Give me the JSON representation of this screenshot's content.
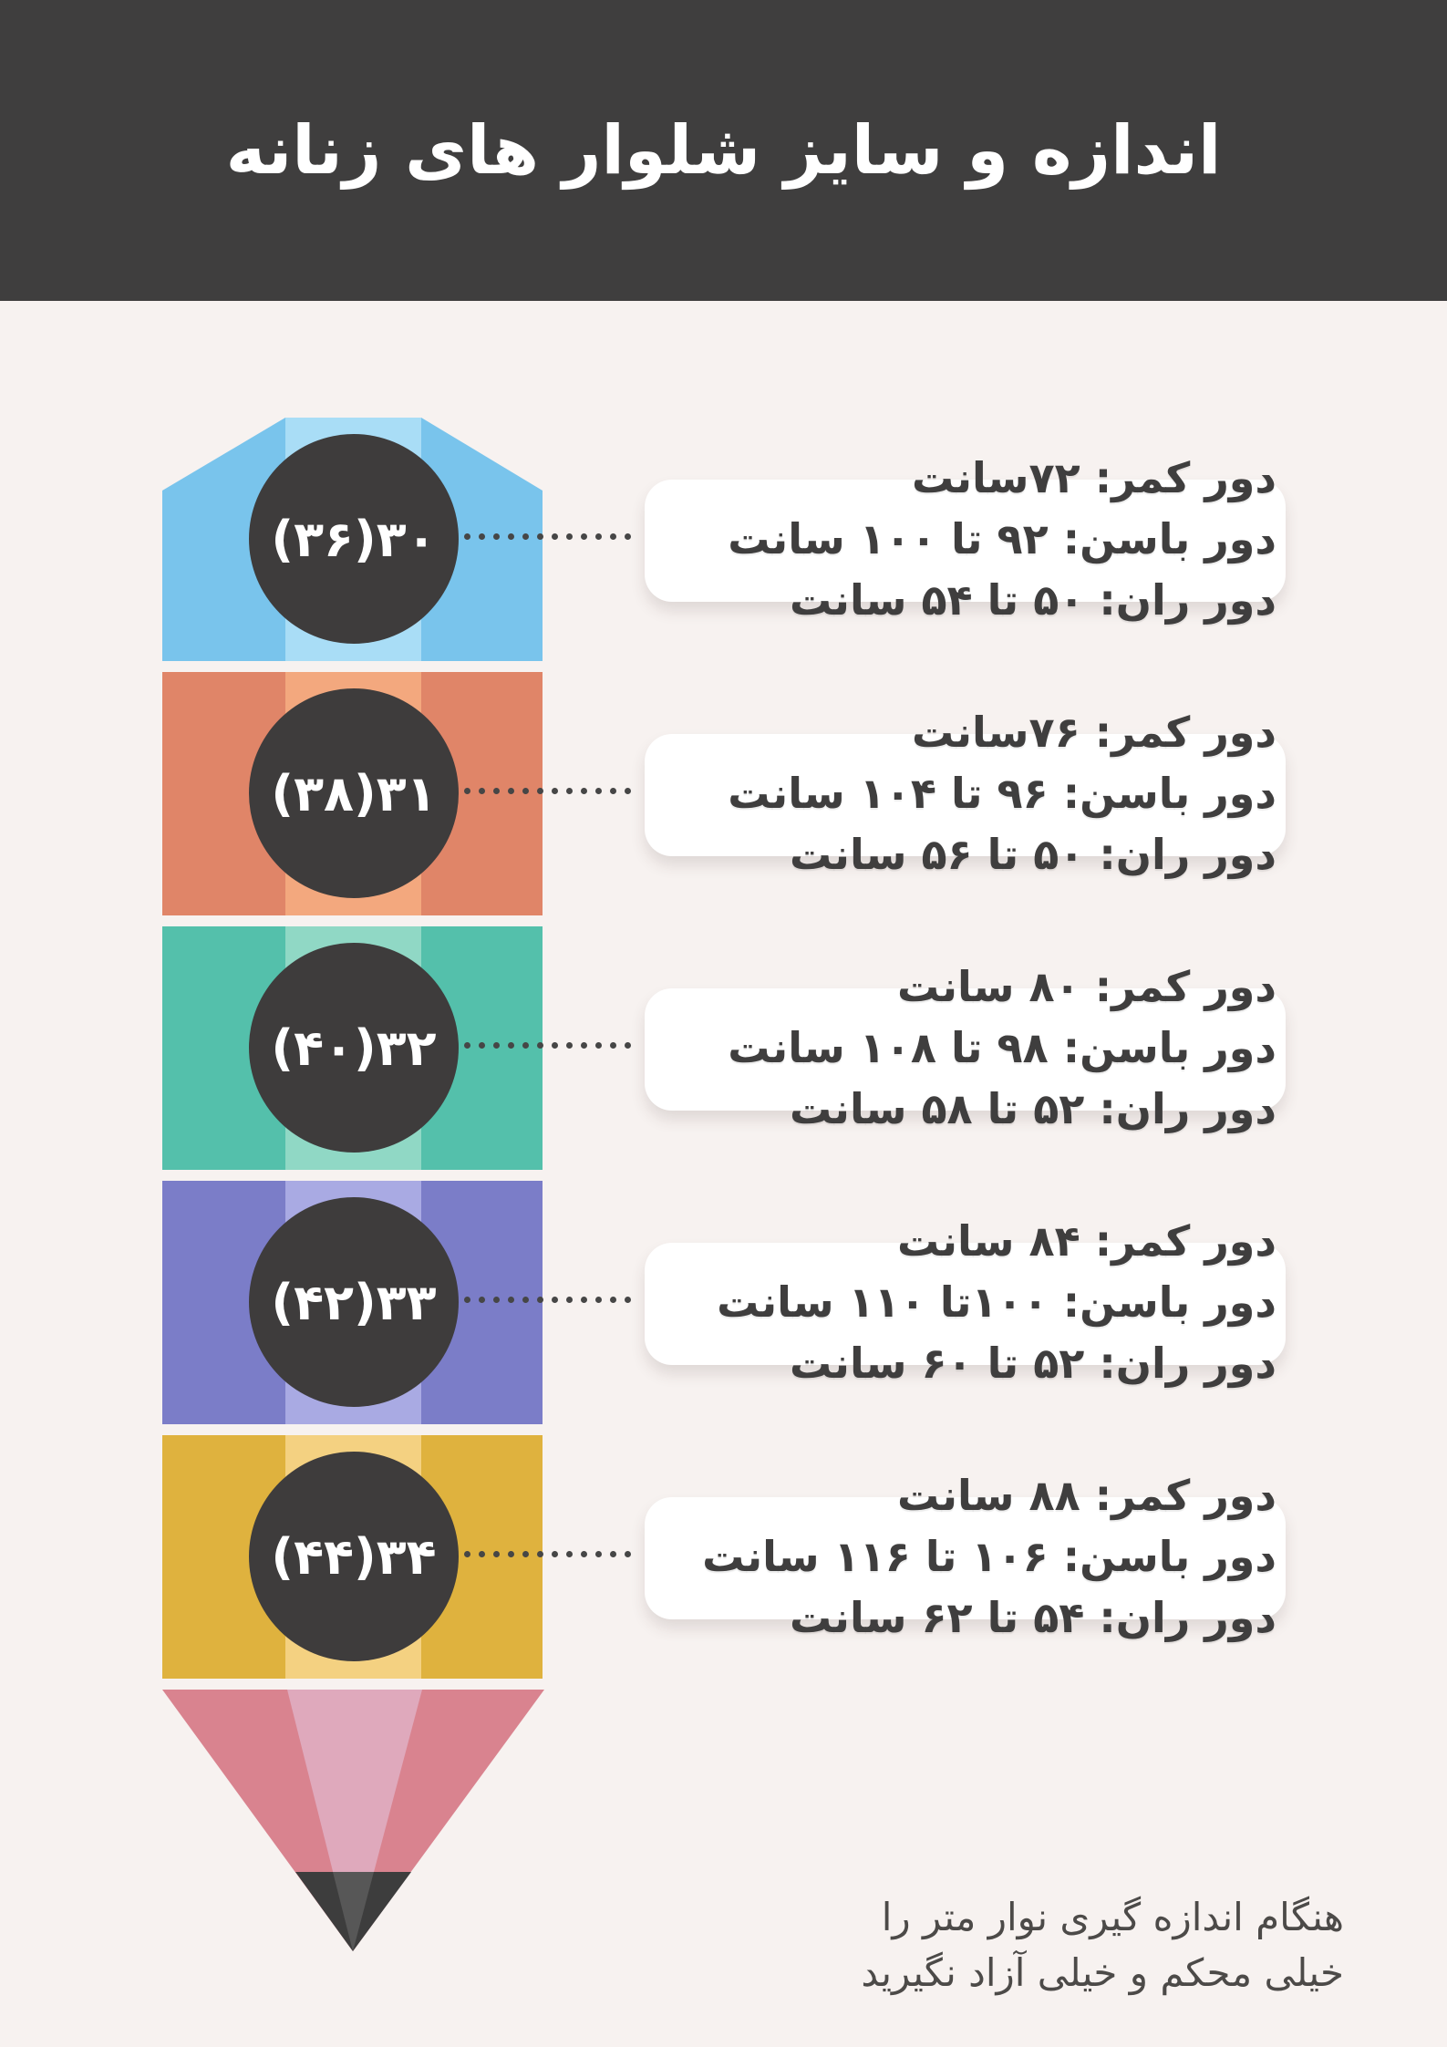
{
  "title": "اندازه و سایز شلوار های زنانه",
  "theme": {
    "background": "#f7f2f0",
    "header_bg": "#3f3e3e",
    "text_dark": "#3f3e3e",
    "circle_bg": "#3e3c3c",
    "dot_color": "#464646",
    "card_bg": "#ffffff"
  },
  "pencil": {
    "rows": [
      {
        "size_label": "۳۰(۳۶)",
        "body_color": "#79c4ec",
        "stripe_color": "#a9ddf6",
        "specs": [
          "دور کمر: ۷۲سانت",
          "دور باسن: ۹۲ تا ۱۰۰ سانت",
          "دور ران: ۵۰ تا ۵۴ سانت"
        ]
      },
      {
        "size_label": "۳۱(۳۸)",
        "body_color": "#e08568",
        "stripe_color": "#f3a87e",
        "specs": [
          "دور کمر: ۷۶سانت",
          "دور باسن: ۹۶ تا ۱۰۴ سانت",
          "دور ران: ۵۰ تا ۵۶ سانت"
        ]
      },
      {
        "size_label": "۳۲(۴۰)",
        "body_color": "#54c0ab",
        "stripe_color": "#90d8c5",
        "specs": [
          "دور کمر: ۸۰ سانت",
          "دور باسن: ۹۸ تا ۱۰۸ سانت",
          "دور ران: ۵۲ تا ۵۸ سانت"
        ]
      },
      {
        "size_label": "۳۳(۴۲)",
        "body_color": "#7b7dc8",
        "stripe_color": "#a9aae3",
        "specs": [
          "دور کمر: ۸۴ سانت",
          "دور باسن: ۱۰۰تا ۱۱۰ سانت",
          "دور ران: ۵۲ تا ۶۰ سانت"
        ]
      },
      {
        "size_label": "۳۴(۴۴)",
        "body_color": "#dfb23e",
        "stripe_color": "#f4d181",
        "specs": [
          "دور کمر: ۸۸ سانت",
          "دور باسن: ۱۰۶ تا ۱۱۶ سانت",
          "دور ران: ۵۴ تا ۶۲ سانت"
        ]
      }
    ],
    "tip": {
      "body_color": "#d9838f",
      "stripe_color": "#dfa9bc",
      "graphite_color": "#3d3d3d",
      "graphite_facet_color": "#575757"
    }
  },
  "footer": {
    "lines": [
      "هنگام اندازه گیری نوار متر را",
      "خیلی محکم و خیلی آزاد نگیرید"
    ]
  }
}
